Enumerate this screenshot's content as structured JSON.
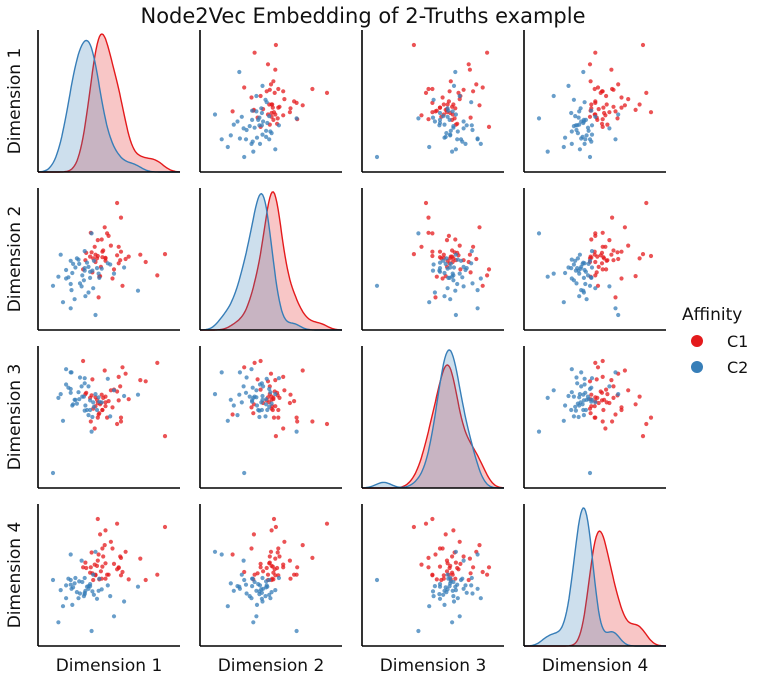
{
  "chart_data": {
    "type": "scatter",
    "title": "Node2Vec Embedding of 2-Truths example",
    "variables": [
      "Dimension 1",
      "Dimension 2",
      "Dimension 3",
      "Dimension 4"
    ],
    "diagonal": "kde",
    "off_diagonal": "scatter",
    "legend": {
      "title": "Affinity",
      "placement": "right",
      "entries": [
        {
          "label": "C1",
          "color": "#e41a1c"
        },
        {
          "label": "C2",
          "color": "#377eb8"
        }
      ]
    },
    "ticks_visible": false,
    "grid": false,
    "series": [
      {
        "name": "C1",
        "color": "#e41a1c",
        "points": [
          [
            0.92,
            0.16,
            -0.56,
            0.85
          ],
          [
            0.3,
            1.0,
            -0.37,
            0.9
          ],
          [
            0.05,
            0.13,
            -0.27,
            0.97
          ],
          [
            0.14,
            0.6,
            0.47,
            0.58
          ],
          [
            0.06,
            -0.55,
            -0.22,
            0.44
          ],
          [
            0.32,
            0.28,
            0.37,
            0.25
          ],
          [
            0.41,
            0.08,
            0.42,
            0.48
          ],
          [
            0.35,
            0.76,
            -0.33,
            0.39
          ],
          [
            0.17,
            0.5,
            -0.27,
            0.14
          ],
          [
            0.82,
            -0.19,
            0.59,
            0.14
          ],
          [
            0.08,
            -0.2,
            -0.06,
            0.74
          ],
          [
            0.15,
            0.09,
            0.06,
            0.8
          ],
          [
            0.22,
            0.3,
            0.16,
            0.63
          ],
          [
            0.34,
            0.06,
            0.22,
            0.41
          ],
          [
            -0.04,
            0.51,
            -0.33,
            0.25
          ],
          [
            0.1,
            0.4,
            0.09,
            0.08
          ],
          [
            0.15,
            0.1,
            -0.09,
            0.08
          ],
          [
            0.6,
            0.15,
            0.32,
            0.38
          ],
          [
            0.45,
            0.12,
            0.02,
            0.07
          ],
          [
            0.67,
            0.03,
            0.3,
            0.06
          ],
          [
            -0.01,
            0.09,
            -0.13,
            0.06
          ],
          [
            0.35,
            0.2,
            -0.27,
            0.13
          ],
          [
            -0.14,
            -0.09,
            0.62,
            0.25
          ],
          [
            0.37,
            -0.36,
            0.52,
            0.18
          ],
          [
            0.05,
            0.39,
            -0.04,
            0.35
          ],
          [
            0.11,
            0.2,
            -0.15,
            0.53
          ],
          [
            0.26,
            -0.09,
            0.17,
            0.3
          ],
          [
            0.02,
            0.15,
            -0.09,
            0.13
          ],
          [
            -0.03,
            0.19,
            0.08,
            0.47
          ],
          [
            0.07,
            -0.21,
            -0.2,
            0.07
          ],
          [
            0.24,
            -0.24,
            -0.11,
            0.53
          ],
          [
            -0.02,
            -0.14,
            0.33,
            0.16
          ],
          [
            0.32,
            0.01,
            0.0,
            0.24
          ],
          [
            0.11,
            0.11,
            -0.15,
            0.26
          ],
          [
            -0.11,
            0.06,
            0.1,
            0.32
          ],
          [
            0.01,
            0.28,
            -0.44,
            0.29
          ],
          [
            -0.1,
            0.18,
            0.12,
            0.24
          ],
          [
            0.19,
            0.46,
            -0.01,
            0.14
          ],
          [
            0.02,
            0.03,
            0.05,
            0.14
          ],
          [
            0.12,
            0.22,
            0.04,
            0.41
          ],
          [
            0.09,
            -0.05,
            -0.04,
            0.19
          ],
          [
            -0.05,
            0.12,
            0.04,
            0.17
          ],
          [
            0.3,
            0.14,
            0.14,
            0.22
          ],
          [
            0.15,
            0.05,
            -0.03,
            0.31
          ],
          [
            0.04,
            0.09,
            0.01,
            0.27
          ]
        ]
      },
      {
        "name": "C2",
        "color": "#377eb8",
        "points": [
          [
            -0.53,
            -0.36,
            -1.14,
            0.06
          ],
          [
            -0.03,
            0.5,
            -0.49,
            -0.7
          ],
          [
            -0.3,
            -0.73,
            0.44,
            0.44
          ],
          [
            -0.46,
            -0.21,
            0.04,
            -0.57
          ],
          [
            0.02,
            -0.84,
            0.1,
            0.48
          ],
          [
            -0.29,
            -0.43,
            0.44,
            -0.07
          ],
          [
            -0.16,
            -0.37,
            0.22,
            0.35
          ],
          [
            -0.09,
            0.02,
            -0.15,
            -0.04
          ],
          [
            -0.36,
            -0.1,
            0.25,
            -0.02
          ],
          [
            0.57,
            -0.44,
            0.09,
            -0.04
          ],
          [
            -0.28,
            -0.15,
            -0.08,
            -0.31
          ],
          [
            -0.3,
            0.05,
            0.18,
            0.06
          ],
          [
            -0.43,
            0.15,
            0.1,
            -0.09
          ],
          [
            0.18,
            0.01,
            0.34,
            -0.02
          ],
          [
            0.07,
            -0.23,
            -0.02,
            0.08
          ],
          [
            -0.13,
            -0.27,
            0.06,
            -0.18
          ],
          [
            -0.02,
            -0.11,
            -0.26,
            -0.11
          ],
          [
            -0.12,
            0.21,
            0.35,
            0.09
          ],
          [
            -0.01,
            -0.4,
            -0.03,
            0.14
          ],
          [
            0.39,
            -0.06,
            0.07,
            -0.26
          ],
          [
            0.26,
            -0.16,
            0.16,
            -0.48
          ],
          [
            0.21,
            -0.01,
            -0.25,
            -0.18
          ],
          [
            -0.36,
            -0.24,
            0.49,
            -0.21
          ],
          [
            -0.24,
            -0.06,
            0.01,
            0.09
          ],
          [
            -0.11,
            -0.53,
            -0.08,
            -0.1
          ],
          [
            0.04,
            -0.07,
            -0.15,
            -0.22
          ],
          [
            -0.07,
            -0.47,
            -0.23,
            -0.03
          ],
          [
            -0.18,
            -0.32,
            0.36,
            -0.14
          ],
          [
            -0.05,
            -0.23,
            0.0,
            -0.03
          ],
          [
            -0.12,
            -0.11,
            -0.16,
            -0.15
          ],
          [
            -0.27,
            0.0,
            -0.06,
            -0.05
          ],
          [
            -0.25,
            -0.58,
            0.01,
            0.01
          ],
          [
            0.0,
            0.05,
            -0.1,
            -0.16
          ],
          [
            -0.33,
            -0.22,
            0.2,
            0.08
          ],
          [
            0.1,
            -0.08,
            -0.03,
            -0.08
          ],
          [
            -0.2,
            0.07,
            0.13,
            -0.21
          ],
          [
            -0.07,
            -0.05,
            0.22,
            -0.07
          ],
          [
            -0.4,
            -0.63,
            -0.32,
            -0.33
          ],
          [
            -0.15,
            -0.19,
            0.06,
            0.03
          ],
          [
            -0.05,
            -0.13,
            -0.15,
            0.0
          ],
          [
            -0.22,
            0.09,
            -0.05,
            -0.12
          ],
          [
            -0.12,
            -0.07,
            0.27,
            -0.13
          ],
          [
            -0.3,
            -0.33,
            0.12,
            -0.01
          ],
          [
            0.06,
            -0.16,
            0.05,
            -0.1
          ],
          [
            -0.19,
            0.0,
            0.02,
            0.04
          ]
        ]
      }
    ]
  }
}
